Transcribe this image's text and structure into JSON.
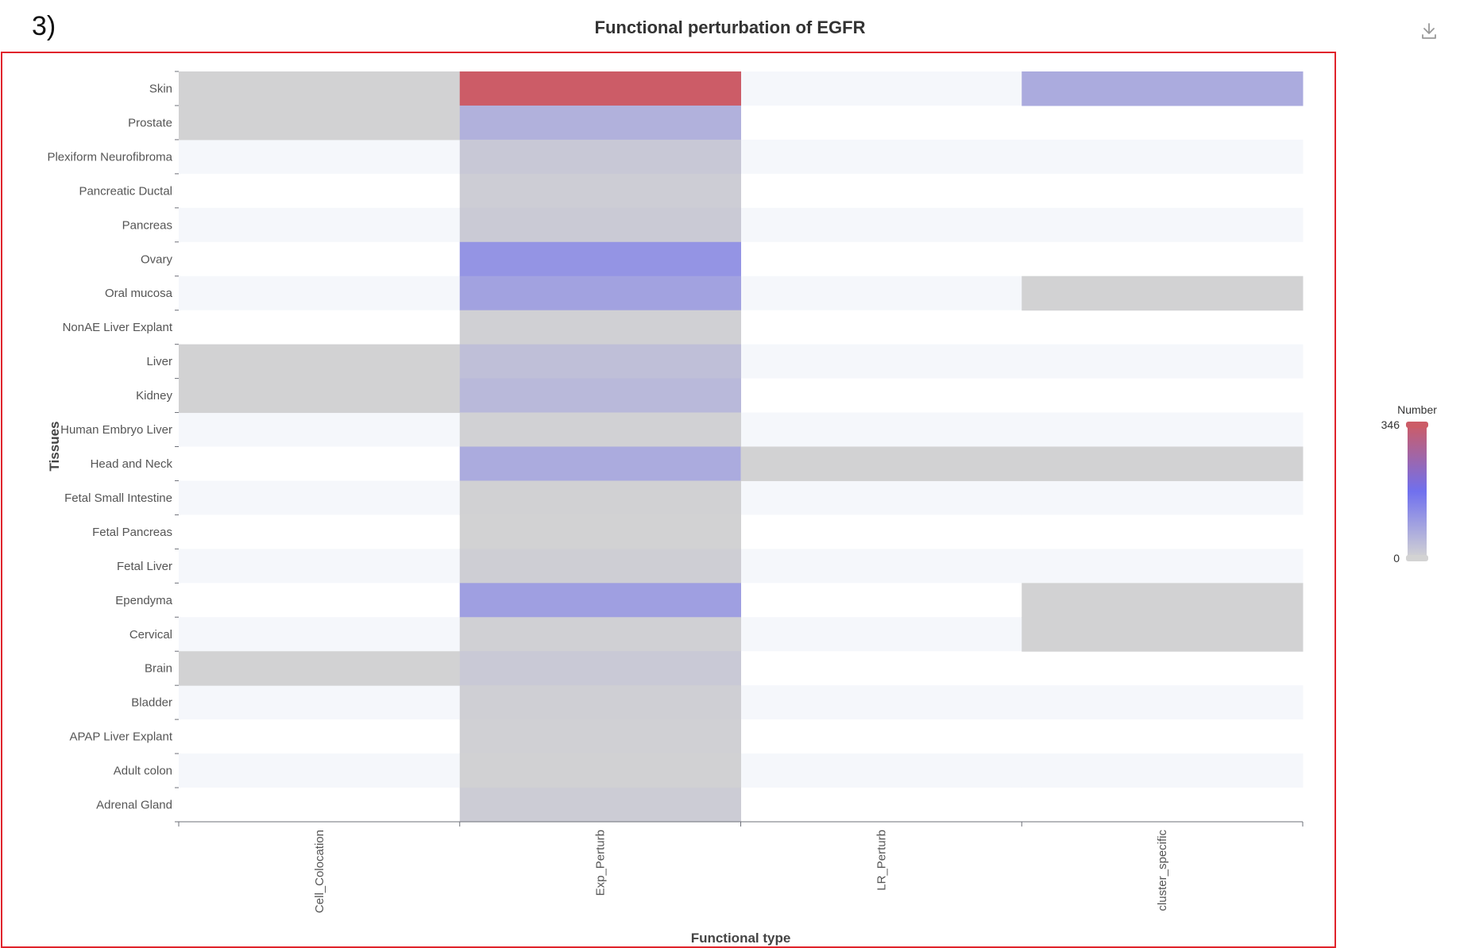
{
  "figure_label": "3)",
  "icons": {
    "download": "download-icon"
  },
  "chart_data": {
    "type": "heatmap",
    "title": "Functional perturbation of EGFR",
    "xlabel": "Functional type",
    "ylabel": "Tissues",
    "x_categories": [
      "Cell_Colocation",
      "Exp_Perturb",
      "LR_Perturb",
      "cluster_specific"
    ],
    "y_categories": [
      "Skin",
      "Prostate",
      "Plexiform Neurofibroma",
      "Pancreatic Ductal",
      "Pancreas",
      "Ovary",
      "Oral mucosa",
      "NonAE Liver Explant",
      "Liver",
      "Kidney",
      "Human Embryo Liver",
      "Head and Neck",
      "Fetal Small Intestine",
      "Fetal Pancreas",
      "Fetal Liver",
      "Ependyma",
      "Cervical",
      "Brain",
      "Bladder",
      "APAP Liver Explant",
      "Adult colon",
      "Adrenal Gland"
    ],
    "values": [
      [
        2,
        346,
        null,
        70
      ],
      [
        1,
        60,
        null,
        null
      ],
      [
        null,
        20,
        null,
        null
      ],
      [
        null,
        10,
        null,
        null
      ],
      [
        null,
        15,
        null,
        null
      ],
      [
        null,
        110,
        null,
        null
      ],
      [
        null,
        85,
        null,
        1
      ],
      [
        null,
        5,
        null,
        null
      ],
      [
        1,
        35,
        null,
        null
      ],
      [
        1,
        45,
        null,
        null
      ],
      [
        null,
        4,
        null,
        null
      ],
      [
        null,
        70,
        1,
        1
      ],
      [
        null,
        3,
        null,
        null
      ],
      [
        null,
        2,
        null,
        null
      ],
      [
        null,
        8,
        null,
        null
      ],
      [
        null,
        90,
        null,
        1
      ],
      [
        null,
        6,
        null,
        1
      ],
      [
        1,
        18,
        null,
        null
      ],
      [
        null,
        7,
        null,
        null
      ],
      [
        null,
        5,
        null,
        null
      ],
      [
        null,
        3,
        null,
        null
      ],
      [
        null,
        12,
        null,
        null
      ]
    ],
    "visual_map": {
      "title": "Number",
      "min": 0,
      "max": 346,
      "min_label": "0",
      "max_label": "346",
      "colors": [
        "#d3d3d3",
        "#7070ee",
        "#cc5c67"
      ]
    },
    "split_area_colors": [
      "#f5f7fb",
      "#ffffff"
    ],
    "grid": false
  }
}
